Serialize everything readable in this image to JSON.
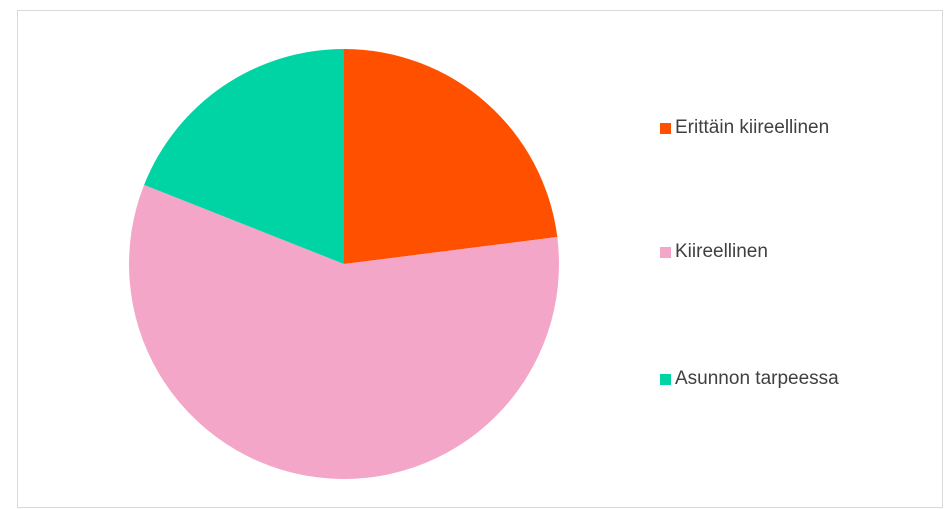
{
  "chart_data": {
    "type": "pie",
    "categories": [
      "Erittäin kiireellinen",
      "Kiireellinen",
      "Asunnon tarpeessa"
    ],
    "values": [
      23,
      58,
      19
    ],
    "colors": [
      "#ff5000",
      "#f4a6c8",
      "#00d4a4"
    ],
    "legend": "right"
  }
}
